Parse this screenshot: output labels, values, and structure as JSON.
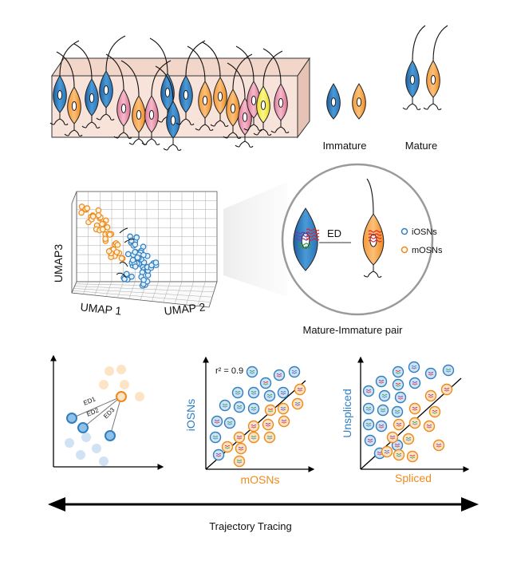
{
  "top_panel": {
    "legend_immature": "Immature",
    "legend_mature": "Mature"
  },
  "umap_panel": {
    "axis_x1": "UMAP 1",
    "axis_x2": "UMAP 2",
    "axis_z": "UMAP3",
    "zoom_ed_label": "ED",
    "legend_iosns": "iOSNs",
    "legend_mosns": "mOSNs",
    "caption": "Mature-Immature pair"
  },
  "bottom_panels": {
    "ed_labels": [
      "ED1",
      "ED2",
      "ED3"
    ],
    "scatter1": {
      "r2_label": "r² = 0.9",
      "xlabel": "mOSNs",
      "ylabel": "iOSNs"
    },
    "scatter2": {
      "xlabel": "Spliced",
      "ylabel": "Unspliced"
    }
  },
  "footer": {
    "arrow_label": "Trajectory Tracing"
  },
  "colors": {
    "immature_blue": "#2f7fc1",
    "mature_orange": "#ef8a1a",
    "pink": "#e88aa8",
    "yellow": "#f2ea3a",
    "tissue": "#f7e3da"
  }
}
